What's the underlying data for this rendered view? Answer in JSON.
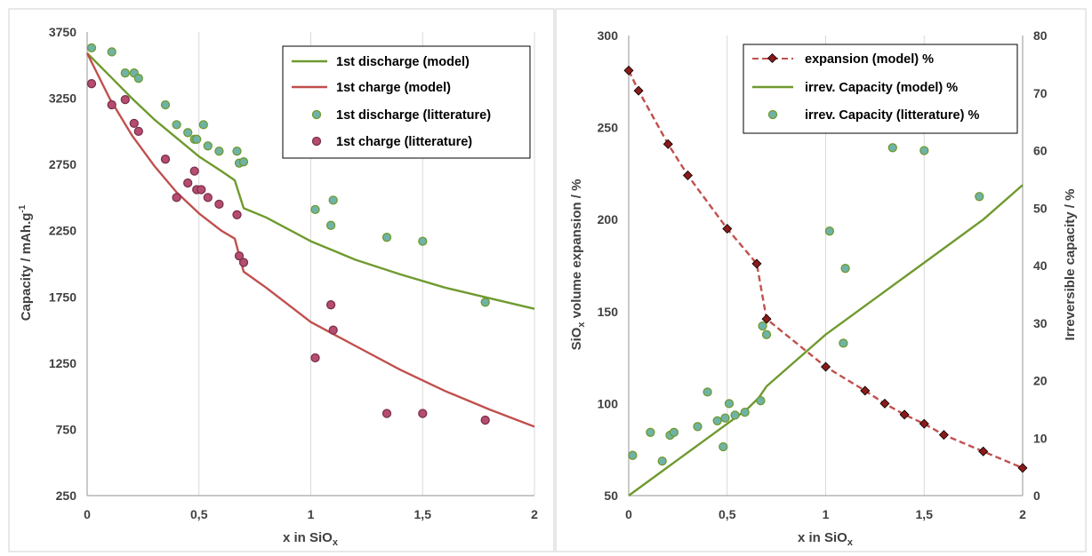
{
  "colors": {
    "green_line": "#6f9a2e",
    "red_line": "#c0504d",
    "marker_green_fill": "#6fb3a8",
    "marker_green_edge": "#6f9a2e",
    "marker_red_fill": "#b64d6e",
    "marker_red_edge": "#7a2f4f",
    "diamond_fill": "#8b1a1a",
    "grid": "#d9d9d9",
    "panel_border": "#d0d0d0"
  },
  "chart_data": [
    {
      "type": "line",
      "xlabel": "x in SiO",
      "xlabel_sub": "x",
      "ylabel": "Capacity  / mAh.g",
      "ylabel_sup": "-1",
      "xlim": [
        0,
        2
      ],
      "ylim": [
        250,
        3750
      ],
      "xticks": [
        0,
        0.5,
        1,
        1.5,
        2
      ],
      "xtick_labels": [
        "0",
        "0,5",
        "1",
        "1,5",
        "2"
      ],
      "yticks": [
        250,
        750,
        1250,
        1750,
        2250,
        2750,
        3250,
        3750
      ],
      "ytick_labels": [
        "250",
        "750",
        "1250",
        "1750",
        "2250",
        "2750",
        "3250",
        "3750"
      ],
      "grid": "vertical",
      "legend_position": "top-right",
      "series": [
        {
          "name": "1st discharge (model)",
          "kind": "line",
          "color": "#6f9a2e",
          "x": [
            0,
            0.1,
            0.2,
            0.3,
            0.4,
            0.5,
            0.6,
            0.66,
            0.7,
            0.8,
            0.9,
            1.0,
            1.2,
            1.4,
            1.6,
            1.8,
            2.0
          ],
          "y": [
            3590,
            3420,
            3250,
            3090,
            2950,
            2810,
            2700,
            2630,
            2420,
            2350,
            2260,
            2170,
            2030,
            1920,
            1820,
            1740,
            1660
          ]
        },
        {
          "name": "1st charge (model)",
          "kind": "line",
          "color": "#c0504d",
          "x": [
            0,
            0.1,
            0.2,
            0.3,
            0.4,
            0.5,
            0.6,
            0.66,
            0.7,
            0.8,
            0.9,
            1.0,
            1.2,
            1.4,
            1.6,
            1.8,
            2.0
          ],
          "y": [
            3590,
            3250,
            2970,
            2740,
            2540,
            2380,
            2250,
            2190,
            1940,
            1820,
            1690,
            1560,
            1380,
            1200,
            1040,
            900,
            770
          ]
        },
        {
          "name": "1st discharge (litterature)",
          "kind": "scatter",
          "marker": "circle",
          "x": [
            0.02,
            0.11,
            0.17,
            0.21,
            0.23,
            0.35,
            0.4,
            0.45,
            0.48,
            0.49,
            0.52,
            0.54,
            0.59,
            0.67,
            0.68,
            0.7,
            1.02,
            1.09,
            1.1,
            1.34,
            1.5,
            1.78
          ],
          "y": [
            3630,
            3600,
            3440,
            3440,
            3400,
            3200,
            3050,
            2990,
            2940,
            2940,
            3050,
            2890,
            2850,
            2850,
            2760,
            2770,
            2410,
            2290,
            2480,
            2200,
            2170,
            1710
          ]
        },
        {
          "name": "1st charge (litterature)",
          "kind": "scatter",
          "marker": "circle",
          "x": [
            0.02,
            0.11,
            0.17,
            0.21,
            0.23,
            0.35,
            0.4,
            0.45,
            0.48,
            0.49,
            0.51,
            0.54,
            0.59,
            0.67,
            0.68,
            0.7,
            1.02,
            1.09,
            1.1,
            1.34,
            1.5,
            1.78
          ],
          "y": [
            3360,
            3200,
            3240,
            3060,
            3000,
            2790,
            2500,
            2610,
            2700,
            2560,
            2560,
            2500,
            2450,
            2370,
            2060,
            2010,
            1290,
            1690,
            1500,
            870,
            870,
            820
          ]
        }
      ]
    },
    {
      "type": "line",
      "xlabel": "x in SiO",
      "xlabel_sub": "x",
      "ylabel": "SiO",
      "ylabel_sub": "x",
      "ylabel_rest": " volume expansion / %",
      "y2label": "Irreversible capacity / %",
      "xlim": [
        0,
        2
      ],
      "ylim": [
        50,
        300
      ],
      "y2lim": [
        0,
        80
      ],
      "xticks": [
        0,
        0.5,
        1,
        1.5,
        2
      ],
      "xtick_labels": [
        "0",
        "0,5",
        "1",
        "1,5",
        "2"
      ],
      "yticks": [
        50,
        100,
        150,
        200,
        250,
        300
      ],
      "ytick_labels": [
        "50",
        "100",
        "150",
        "200",
        "250",
        "300"
      ],
      "y2ticks": [
        0,
        10,
        20,
        30,
        40,
        50,
        60,
        70,
        80
      ],
      "y2tick_labels": [
        "0",
        "10",
        "20",
        "30",
        "40",
        "50",
        "60",
        "70",
        "80"
      ],
      "grid": "vertical",
      "legend_position": "top-right",
      "series": [
        {
          "name": "expansion (model) %",
          "kind": "line-diamond",
          "axis": "left",
          "color": "#c0504d",
          "x": [
            0,
            0.05,
            0.2,
            0.3,
            0.5,
            0.65,
            0.7,
            1.0,
            1.2,
            1.3,
            1.4,
            1.5,
            1.6,
            1.8,
            2.0
          ],
          "y": [
            281,
            270,
            241,
            224,
            195,
            176,
            146,
            120,
            107,
            100,
            94,
            89,
            83,
            74,
            65
          ]
        },
        {
          "name": "irrev. Capacity (model) %",
          "kind": "line",
          "axis": "right",
          "color": "#6f9a2e",
          "x": [
            0,
            0.2,
            0.4,
            0.6,
            0.66,
            0.7,
            0.8,
            1.0,
            1.2,
            1.4,
            1.6,
            1.8,
            2.0
          ],
          "y": [
            0,
            5,
            10,
            15,
            17,
            19,
            22,
            28,
            33,
            38,
            43,
            48,
            54
          ]
        },
        {
          "name": "irrev. Capacity (litterature) %",
          "kind": "scatter",
          "marker": "circle",
          "axis": "right",
          "x": [
            0.02,
            0.11,
            0.17,
            0.21,
            0.23,
            0.35,
            0.4,
            0.45,
            0.48,
            0.49,
            0.51,
            0.54,
            0.59,
            0.67,
            0.68,
            0.7,
            1.02,
            1.09,
            1.1,
            1.34,
            1.5,
            1.78
          ],
          "y": [
            7,
            11,
            6,
            10.5,
            11,
            12,
            18,
            13,
            8.5,
            13.5,
            16,
            14,
            14.5,
            16.5,
            29.5,
            28,
            46,
            26.5,
            39.5,
            60.5,
            60,
            52
          ]
        }
      ]
    }
  ]
}
